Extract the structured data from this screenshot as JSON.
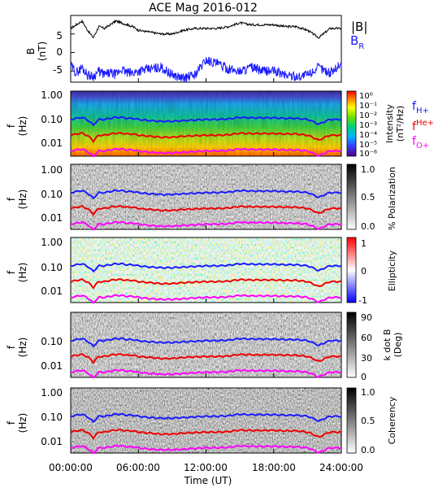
{
  "title": "ACE Mag 2016-012",
  "colors": {
    "B_total": "#000000",
    "B_R": "#1a1aff",
    "f_H": "#1a1aff",
    "f_He": "#ee0000",
    "f_O": "#ff00ff"
  },
  "chart_data": [
    {
      "type": "line",
      "panel": "magnetic-field",
      "ylabel": "B\n(nT)",
      "ylim": [
        -8,
        10
      ],
      "yticks": [
        "5",
        "0",
        "-5"
      ],
      "legend": [
        {
          "name": "|B|",
          "color": "#000000"
        },
        {
          "name": "B",
          "sub": "R",
          "color": "#1a1aff"
        }
      ],
      "series": [
        {
          "name": "|B|",
          "x": [
            0,
            0.5,
            1,
            1.5,
            2,
            2.5,
            3,
            3.5,
            4,
            4.5,
            5,
            5.5,
            6,
            7,
            8,
            9,
            10,
            11,
            12,
            13,
            14,
            15,
            16,
            17,
            18,
            19,
            20,
            21,
            22,
            23,
            24
          ],
          "values": [
            6.5,
            7.5,
            8.5,
            6,
            4,
            7,
            6.5,
            7.5,
            8.5,
            8,
            7.5,
            7,
            6,
            5.5,
            5,
            5,
            6,
            6.5,
            6.5,
            6.5,
            7,
            8,
            7.5,
            7.5,
            7.5,
            7,
            7,
            6,
            4,
            6.5,
            6.5
          ]
        },
        {
          "name": "B_R",
          "x": [
            0,
            0.5,
            1,
            1.5,
            2,
            2.5,
            3,
            3.5,
            4,
            4.5,
            5,
            5.5,
            6,
            7,
            8,
            9,
            10,
            11,
            12,
            13,
            14,
            15,
            16,
            17,
            18,
            19,
            20,
            21,
            22,
            23,
            24
          ],
          "values": [
            -3.5,
            -5.5,
            -4,
            -6,
            -6.5,
            -5,
            -6,
            -5.5,
            -6,
            -4.5,
            -5.5,
            -5.5,
            -5,
            -4.5,
            -4,
            -6,
            -7,
            -6,
            -2,
            -3,
            -4.5,
            -5,
            -4,
            -5,
            -5,
            -6,
            -6.5,
            -6,
            -4,
            -5.5,
            -3
          ]
        }
      ]
    },
    {
      "type": "heatmap",
      "panel": "intensity",
      "ylabel": "f\n(Hz)",
      "ylim": [
        0.004,
        1.2
      ],
      "yscale": "log",
      "yticks": [
        "1.00",
        "0.10",
        "0.01"
      ],
      "colorbar": {
        "label": "Intensity\n(nT²/Hz)",
        "palette": "rainbow",
        "ticks": [
          "10⁰",
          "10⁻¹",
          "10⁻²",
          "10⁻³",
          "10⁻⁴",
          "10⁻⁵",
          "10⁻⁶"
        ]
      },
      "legend": [
        {
          "name": "f",
          "sub": "H+",
          "color": "#1a1aff"
        },
        {
          "name": "f",
          "sup": "He+",
          "color": "#ee0000"
        },
        {
          "name": "f",
          "sub": "O+",
          "color": "#ff00ff"
        }
      ]
    },
    {
      "type": "heatmap",
      "panel": "polarization",
      "ylabel": "f\n(Hz)",
      "ylim": [
        0.004,
        1.2
      ],
      "yscale": "log",
      "yticks": [
        "1.00",
        "0.10",
        "0.01"
      ],
      "colorbar": {
        "label": "% Polarization",
        "palette": "gray",
        "ticks": [
          "1.0",
          "0.5",
          "0.0"
        ]
      }
    },
    {
      "type": "heatmap",
      "panel": "ellipticity",
      "ylabel": "f\n(Hz)",
      "ylim": [
        0.004,
        1.2
      ],
      "yscale": "log",
      "yticks": [
        "1.00",
        "0.10",
        "0.01"
      ],
      "colorbar": {
        "label": "Ellipticity",
        "palette": "bluewhitered",
        "ticks": [
          "1",
          "0",
          "-1"
        ]
      }
    },
    {
      "type": "heatmap",
      "panel": "kdotb",
      "ylabel": "f\n(Hz)",
      "ylim": [
        0.004,
        1.2
      ],
      "yscale": "log",
      "yticks": [
        "0.10",
        "0.01"
      ],
      "colorbar": {
        "label": "k dot B\n(Deg)",
        "palette": "gray",
        "ticks": [
          "90",
          "60",
          "30",
          "0"
        ]
      }
    },
    {
      "type": "heatmap",
      "panel": "coherency",
      "ylabel": "f\n(Hz)",
      "ylim": [
        0.004,
        1.2
      ],
      "yscale": "log",
      "yticks": [
        "1.00",
        "0.10",
        "0.01"
      ],
      "colorbar": {
        "label": "Coherency",
        "palette": "gray",
        "ticks": [
          "1.0",
          "0.5",
          "0.0"
        ]
      }
    }
  ],
  "gyrofrequency": {
    "x": [
      0,
      0.5,
      1,
      1.5,
      2,
      2.5,
      3,
      3.5,
      4,
      4.5,
      5,
      5.5,
      6,
      7,
      8,
      9,
      10,
      11,
      12,
      13,
      14,
      15,
      16,
      17,
      18,
      19,
      20,
      21,
      22,
      23,
      24
    ],
    "fH": [
      0.1,
      0.11,
      0.12,
      0.095,
      0.06,
      0.1,
      0.1,
      0.11,
      0.12,
      0.12,
      0.11,
      0.11,
      0.1,
      0.09,
      0.085,
      0.085,
      0.09,
      0.095,
      0.1,
      0.1,
      0.105,
      0.12,
      0.115,
      0.115,
      0.115,
      0.11,
      0.11,
      0.1,
      0.065,
      0.1,
      0.1
    ],
    "fHe": [
      0.025,
      0.028,
      0.03,
      0.024,
      0.015,
      0.025,
      0.025,
      0.028,
      0.03,
      0.03,
      0.028,
      0.028,
      0.025,
      0.023,
      0.021,
      0.021,
      0.023,
      0.024,
      0.025,
      0.025,
      0.026,
      0.03,
      0.029,
      0.029,
      0.029,
      0.028,
      0.028,
      0.025,
      0.016,
      0.025,
      0.025
    ],
    "fO": [
      0.0063,
      0.0069,
      0.0075,
      0.006,
      0.0038,
      0.0063,
      0.0063,
      0.0069,
      0.0075,
      0.0075,
      0.0069,
      0.0069,
      0.0063,
      0.0056,
      0.0053,
      0.0053,
      0.0056,
      0.006,
      0.0063,
      0.0063,
      0.0066,
      0.0075,
      0.0072,
      0.0072,
      0.0072,
      0.0069,
      0.0069,
      0.0063,
      0.0041,
      0.0063,
      0.0063
    ]
  },
  "xaxis": {
    "label": "Time (UT)",
    "xlim": [
      0,
      24
    ],
    "ticks": [
      {
        "hour": 0,
        "label": "00:00:00"
      },
      {
        "hour": 6,
        "label": "06:00:00"
      },
      {
        "hour": 12,
        "label": "12:00:00"
      },
      {
        "hour": 18,
        "label": "18:00:00"
      },
      {
        "hour": 24,
        "label": "24:00:00"
      }
    ]
  }
}
